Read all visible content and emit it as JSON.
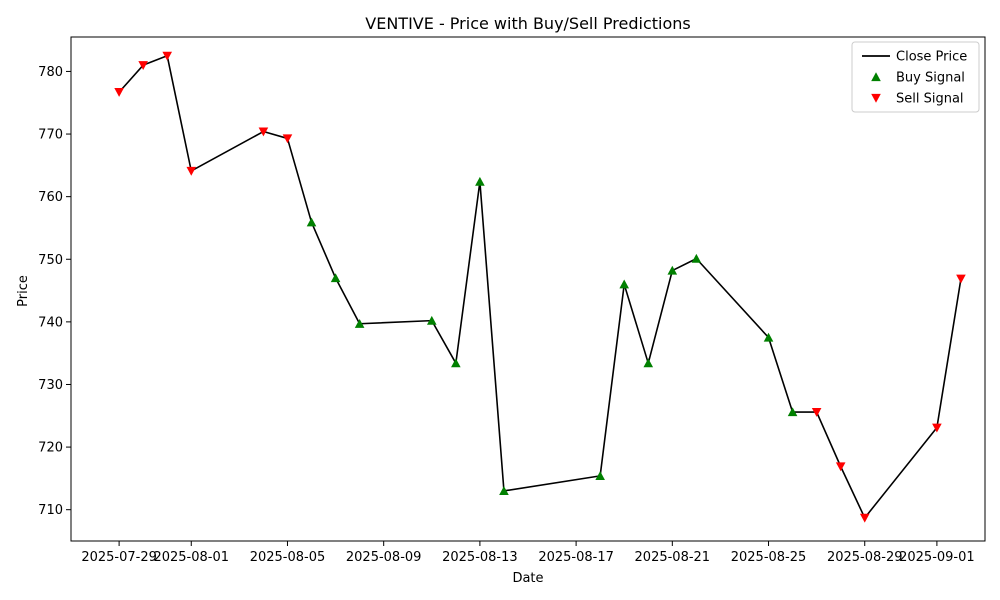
{
  "chart_data": {
    "type": "line",
    "title": "VENTIVE - Price with Buy/Sell Predictions",
    "xlabel": "Date",
    "ylabel": "Price",
    "ylim": [
      705,
      785.5
    ],
    "xlim": [
      "2025-07-27",
      "2025-09-03"
    ],
    "y_ticks": [
      710,
      720,
      730,
      740,
      750,
      760,
      770,
      780
    ],
    "x_ticks": [
      "2025-07-29",
      "2025-08-01",
      "2025-08-05",
      "2025-08-09",
      "2025-08-13",
      "2025-08-17",
      "2025-08-21",
      "2025-08-25",
      "2025-08-29",
      "2025-09-01"
    ],
    "legend_position": "top-right",
    "grid": false,
    "colors": {
      "close": "#000000",
      "buy": "#008000",
      "sell": "#ff0000"
    },
    "series": [
      {
        "name": "Close Price",
        "points": [
          {
            "x": "2025-07-29",
            "y": 776.7,
            "signal": "sell"
          },
          {
            "x": "2025-07-30",
            "y": 781.0,
            "signal": "sell"
          },
          {
            "x": "2025-07-31",
            "y": 782.5,
            "signal": "sell"
          },
          {
            "x": "2025-08-01",
            "y": 764.1,
            "signal": "sell"
          },
          {
            "x": "2025-08-04",
            "y": 770.4,
            "signal": "sell"
          },
          {
            "x": "2025-08-05",
            "y": 769.3,
            "signal": "sell"
          },
          {
            "x": "2025-08-06",
            "y": 755.9,
            "signal": "buy"
          },
          {
            "x": "2025-08-07",
            "y": 747.0,
            "signal": "buy"
          },
          {
            "x": "2025-08-08",
            "y": 739.7,
            "signal": "buy"
          },
          {
            "x": "2025-08-11",
            "y": 740.2,
            "signal": "buy"
          },
          {
            "x": "2025-08-12",
            "y": 733.4,
            "signal": "buy"
          },
          {
            "x": "2025-08-13",
            "y": 762.4,
            "signal": "buy"
          },
          {
            "x": "2025-08-14",
            "y": 713.0,
            "signal": "buy"
          },
          {
            "x": "2025-08-18",
            "y": 715.4,
            "signal": "buy"
          },
          {
            "x": "2025-08-19",
            "y": 746.0,
            "signal": "buy"
          },
          {
            "x": "2025-08-20",
            "y": 733.4,
            "signal": "buy"
          },
          {
            "x": "2025-08-21",
            "y": 748.2,
            "signal": "buy"
          },
          {
            "x": "2025-08-22",
            "y": 750.1,
            "signal": "buy"
          },
          {
            "x": "2025-08-25",
            "y": 737.5,
            "signal": "buy"
          },
          {
            "x": "2025-08-26",
            "y": 725.6,
            "signal": "buy"
          },
          {
            "x": "2025-08-27",
            "y": 725.6,
            "signal": "sell"
          },
          {
            "x": "2025-08-28",
            "y": 716.9,
            "signal": "sell"
          },
          {
            "x": "2025-08-29",
            "y": 708.7,
            "signal": "sell"
          },
          {
            "x": "2025-09-01",
            "y": 723.1,
            "signal": "sell"
          },
          {
            "x": "2025-09-02",
            "y": 746.9,
            "signal": "sell"
          }
        ]
      }
    ],
    "legend": [
      {
        "label": "Close Price",
        "kind": "line",
        "color": "#000000"
      },
      {
        "label": "Buy Signal",
        "kind": "triangle-up",
        "color": "#008000"
      },
      {
        "label": "Sell Signal",
        "kind": "triangle-down",
        "color": "#ff0000"
      }
    ]
  }
}
